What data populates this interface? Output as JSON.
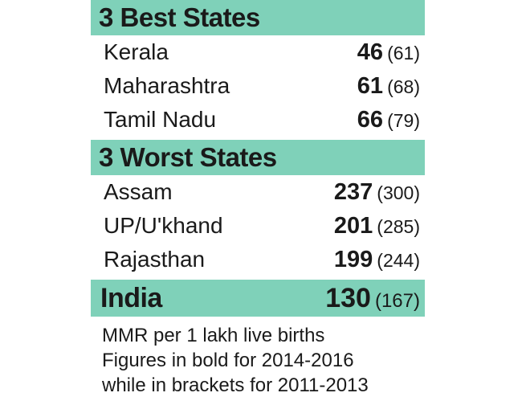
{
  "chart_data": {
    "type": "table",
    "sections": [
      {
        "title": "3 Best States",
        "rows": [
          {
            "state": "Kerala",
            "value_2014_2016": 46,
            "value_2011_2013": 61
          },
          {
            "state": "Maharashtra",
            "value_2014_2016": 61,
            "value_2011_2013": 68
          },
          {
            "state": "Tamil Nadu",
            "value_2014_2016": 66,
            "value_2011_2013": 79
          }
        ]
      },
      {
        "title": "3 Worst States",
        "rows": [
          {
            "state": "Assam",
            "value_2014_2016": 237,
            "value_2011_2013": 300
          },
          {
            "state": "UP/U'khand",
            "value_2014_2016": 201,
            "value_2011_2013": 285
          },
          {
            "state": "Rajasthan",
            "value_2014_2016": 199,
            "value_2011_2013": 244
          }
        ]
      }
    ],
    "total": {
      "state": "India",
      "value_2014_2016": 130,
      "value_2011_2013": 167
    },
    "notes": [
      "MMR per 1 lakh live births",
      "Figures in bold for 2014-2016",
      "while in brackets for 2011-2013"
    ]
  },
  "colors": {
    "band": "#7fd1b9",
    "text": "#1a1a1a",
    "background": "#ffffff"
  }
}
